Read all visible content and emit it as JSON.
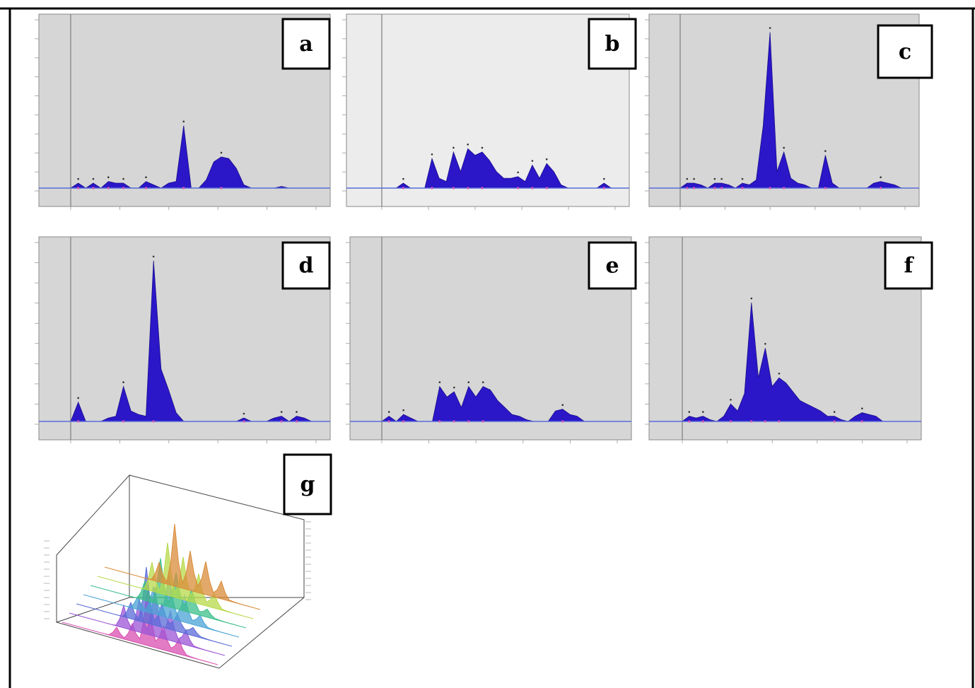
{
  "figure": {
    "panel_labels": [
      "a",
      "b",
      "c",
      "d",
      "e",
      "f",
      "g"
    ]
  },
  "chart_data": [
    {
      "panel": "a",
      "type": "area",
      "x": [
        0.0,
        0.03,
        0.06,
        0.09,
        0.12,
        0.15,
        0.18,
        0.21,
        0.24,
        0.27,
        0.3,
        0.33,
        0.36,
        0.39,
        0.42,
        0.45,
        0.48,
        0.51,
        0.54,
        0.57,
        0.6,
        0.63,
        0.66,
        0.69,
        0.72,
        0.75,
        0.78,
        0.81,
        0.84,
        0.87,
        0.9,
        0.93,
        0.96,
        1.0
      ],
      "y": [
        0,
        0.03,
        0,
        0.03,
        0,
        0.04,
        0.03,
        0.03,
        0,
        0,
        0.04,
        0.02,
        0,
        0.03,
        0.04,
        0.38,
        0,
        0,
        0.05,
        0.16,
        0.19,
        0.18,
        0.12,
        0.02,
        0,
        0,
        0,
        0,
        0.01,
        0,
        0,
        0,
        0,
        0
      ],
      "ylim": [
        0,
        1
      ]
    },
    {
      "panel": "b",
      "type": "area",
      "x": [
        0.0,
        0.03,
        0.06,
        0.09,
        0.12,
        0.15,
        0.18,
        0.21,
        0.24,
        0.27,
        0.3,
        0.33,
        0.36,
        0.39,
        0.42,
        0.45,
        0.48,
        0.51,
        0.54,
        0.57,
        0.6,
        0.63,
        0.66,
        0.69,
        0.72,
        0.75,
        0.78,
        0.81,
        0.84,
        0.87,
        0.9,
        0.93,
        0.96,
        1.0
      ],
      "y": [
        0,
        0,
        0,
        0.03,
        0,
        0,
        0,
        0.18,
        0.06,
        0.04,
        0.22,
        0.1,
        0.24,
        0.2,
        0.22,
        0.17,
        0.1,
        0.06,
        0.06,
        0.07,
        0.04,
        0.14,
        0.06,
        0.15,
        0.1,
        0.02,
        0,
        0,
        0,
        0,
        0,
        0.03,
        0,
        0
      ],
      "ylim": [
        0,
        1
      ]
    },
    {
      "panel": "c",
      "type": "area",
      "x": [
        0.0,
        0.03,
        0.06,
        0.09,
        0.12,
        0.15,
        0.18,
        0.21,
        0.24,
        0.27,
        0.3,
        0.33,
        0.36,
        0.39,
        0.42,
        0.45,
        0.48,
        0.51,
        0.54,
        0.57,
        0.6,
        0.63,
        0.66,
        0.69,
        0.72,
        0.75,
        0.78,
        0.81,
        0.84,
        0.87,
        0.9,
        0.93,
        0.96,
        1.0
      ],
      "y": [
        0,
        0.03,
        0.03,
        0.02,
        0,
        0.03,
        0.03,
        0.02,
        0,
        0.03,
        0.02,
        0.05,
        0.38,
        0.95,
        0.1,
        0.22,
        0.06,
        0.03,
        0.02,
        0,
        0,
        0.2,
        0.03,
        0,
        0,
        0,
        0,
        0,
        0.03,
        0.04,
        0.03,
        0.02,
        0,
        0
      ],
      "ylim": [
        0,
        1
      ]
    },
    {
      "panel": "d",
      "type": "area",
      "x": [
        0.0,
        0.03,
        0.06,
        0.09,
        0.12,
        0.15,
        0.18,
        0.21,
        0.24,
        0.27,
        0.3,
        0.33,
        0.36,
        0.39,
        0.42,
        0.45,
        0.48,
        0.51,
        0.54,
        0.57,
        0.6,
        0.63,
        0.66,
        0.69,
        0.72,
        0.75,
        0.78,
        0.81,
        0.84,
        0.87,
        0.9,
        0.93,
        0.96,
        1.0
      ],
      "y": [
        0,
        0.11,
        0,
        0,
        0,
        0.02,
        0.03,
        0.2,
        0.06,
        0.04,
        0.03,
        0.92,
        0.3,
        0.18,
        0.05,
        0,
        0,
        0,
        0,
        0,
        0,
        0,
        0,
        0.02,
        0,
        0,
        0,
        0.02,
        0.03,
        0,
        0.03,
        0.02,
        0,
        0
      ],
      "ylim": [
        0,
        1
      ]
    },
    {
      "panel": "e",
      "type": "area",
      "x": [
        0.0,
        0.03,
        0.06,
        0.09,
        0.12,
        0.15,
        0.18,
        0.21,
        0.24,
        0.27,
        0.3,
        0.33,
        0.36,
        0.39,
        0.42,
        0.45,
        0.48,
        0.51,
        0.54,
        0.57,
        0.6,
        0.63,
        0.66,
        0.69,
        0.72,
        0.75,
        0.78,
        0.81,
        0.84,
        0.87,
        0.9,
        0.93,
        0.96,
        1.0
      ],
      "y": [
        0,
        0.03,
        0,
        0.04,
        0.02,
        0,
        0,
        0,
        0.2,
        0.14,
        0.17,
        0.08,
        0.2,
        0.14,
        0.2,
        0.18,
        0.12,
        0.08,
        0.04,
        0.03,
        0.01,
        0,
        0,
        0,
        0.06,
        0.07,
        0.04,
        0.03,
        0,
        0,
        0,
        0,
        0,
        0
      ],
      "ylim": [
        0,
        1
      ]
    },
    {
      "panel": "f",
      "type": "area",
      "x": [
        0.0,
        0.03,
        0.06,
        0.09,
        0.12,
        0.15,
        0.18,
        0.21,
        0.24,
        0.27,
        0.3,
        0.33,
        0.36,
        0.39,
        0.42,
        0.45,
        0.48,
        0.51,
        0.54,
        0.57,
        0.6,
        0.63,
        0.66,
        0.69,
        0.72,
        0.75,
        0.78,
        0.81,
        0.84,
        0.87,
        0.9,
        0.93,
        0.96,
        1.0
      ],
      "y": [
        0,
        0.03,
        0.02,
        0.03,
        0.01,
        0,
        0.03,
        0.1,
        0.06,
        0.16,
        0.68,
        0.25,
        0.42,
        0.2,
        0.25,
        0.22,
        0.17,
        0.12,
        0.1,
        0.08,
        0.06,
        0.03,
        0.03,
        0.01,
        0,
        0.03,
        0.05,
        0.04,
        0.03,
        0,
        0,
        0,
        0,
        0
      ],
      "ylim": [
        0,
        1
      ]
    },
    {
      "panel": "g",
      "type": "line",
      "description_series_count": 7,
      "series": [
        {
          "color": "#d94fb0"
        },
        {
          "color": "#9b54d6"
        },
        {
          "color": "#5a6bd8"
        },
        {
          "color": "#4aa3d6"
        },
        {
          "color": "#3bbf8a"
        },
        {
          "color": "#b7d94a"
        },
        {
          "color": "#d98c3a"
        }
      ]
    }
  ]
}
